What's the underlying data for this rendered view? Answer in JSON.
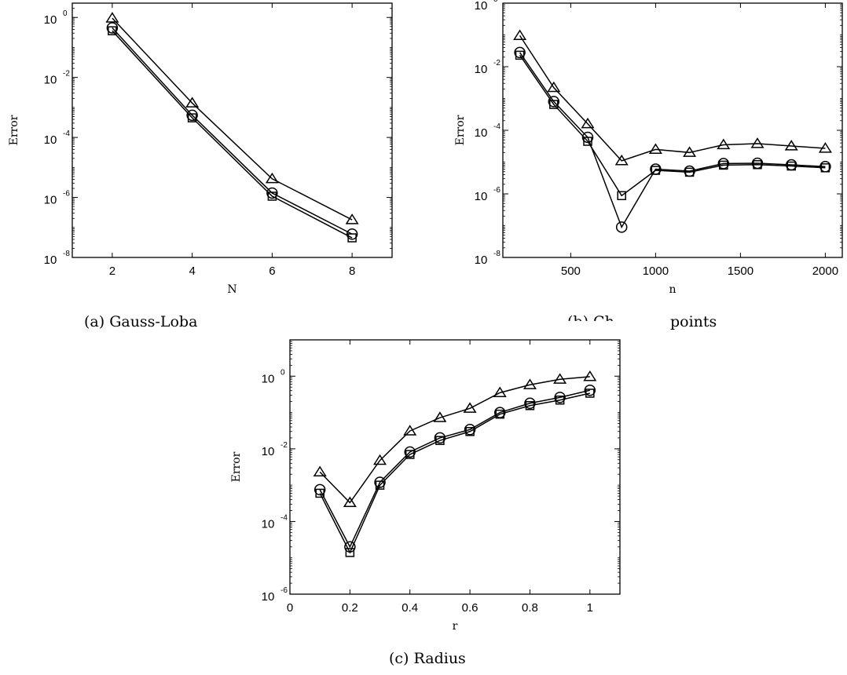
{
  "chart_data": [
    {
      "type": "line",
      "caption": "(a) Gauss-Loba",
      "xlabel": "N",
      "ylabel": "Error",
      "yscale": "log",
      "xlim": [
        1,
        9
      ],
      "ylim": [
        1e-08,
        3
      ],
      "xticks": [
        2,
        4,
        6,
        8
      ],
      "xtick_labels": [
        "2",
        "4",
        "6",
        "8"
      ],
      "yticks": [
        1e-08,
        1e-06,
        0.0001,
        0.01,
        1
      ],
      "ytick_labels": [
        [
          "10",
          "-8"
        ],
        [
          "10",
          "-6"
        ],
        [
          "10",
          "-4"
        ],
        [
          "10",
          "-2"
        ],
        [
          "10",
          "0"
        ]
      ],
      "grid": false,
      "x": [
        2,
        4,
        6,
        8
      ],
      "series": [
        {
          "marker": "triangle",
          "values": [
            0.95,
            0.0014,
            4.2e-06,
            1.8e-07
          ]
        },
        {
          "marker": "circle",
          "values": [
            0.45,
            0.00055,
            1.4e-06,
            6e-08
          ]
        },
        {
          "marker": "square",
          "values": [
            0.36,
            0.00045,
            1.1e-06,
            4.5e-08
          ]
        }
      ]
    },
    {
      "type": "line",
      "caption": "points",
      "xlabel": "n",
      "ylabel": "Error",
      "yscale": "log",
      "xlim": [
        100,
        2100
      ],
      "ylim": [
        1e-08,
        1
      ],
      "xticks": [
        500,
        1000,
        1500,
        2000
      ],
      "xtick_labels": [
        "500",
        "1000",
        "1500",
        "2000"
      ],
      "yticks": [
        1e-08,
        1e-06,
        0.0001,
        0.01,
        1
      ],
      "ytick_labels": [
        [
          "10",
          "-8"
        ],
        [
          "10",
          "-6"
        ],
        [
          "10",
          "-4"
        ],
        [
          "10",
          "-2"
        ],
        [
          "10",
          "0"
        ]
      ],
      "grid": false,
      "x": [
        200,
        400,
        600,
        800,
        1000,
        1200,
        1400,
        1600,
        1800,
        2000
      ],
      "series": [
        {
          "marker": "triangle",
          "values": [
            0.095,
            0.0022,
            0.00016,
            1.1e-05,
            2.5e-05,
            2e-05,
            3.5e-05,
            3.8e-05,
            3.2e-05,
            2.7e-05
          ]
        },
        {
          "marker": "circle",
          "values": [
            0.028,
            0.0008,
            6e-05,
            9e-08,
            6e-06,
            5.2e-06,
            9e-06,
            9.2e-06,
            8.2e-06,
            7.2e-06
          ]
        },
        {
          "marker": "square",
          "values": [
            0.023,
            0.00065,
            4.5e-05,
            8.8e-07,
            5.5e-06,
            4.8e-06,
            8e-06,
            8.3e-06,
            7.5e-06,
            6.6e-06
          ]
        }
      ]
    },
    {
      "type": "line",
      "caption": "(c) Radius",
      "xlabel": "r",
      "ylabel": "Error",
      "yscale": "log",
      "xlim": [
        0,
        1.1
      ],
      "ylim": [
        1e-06,
        10
      ],
      "xticks": [
        0,
        0.2,
        0.4,
        0.6,
        0.8,
        1
      ],
      "xtick_labels": [
        "0",
        "0.2",
        "0.4",
        "0.6",
        "0.8",
        "1"
      ],
      "yticks": [
        1e-06,
        0.0001,
        0.01,
        1
      ],
      "ytick_labels": [
        [
          "10",
          "-6"
        ],
        [
          "10",
          "-4"
        ],
        [
          "10",
          "-2"
        ],
        [
          "10",
          "0"
        ]
      ],
      "grid": false,
      "x": [
        0.1,
        0.2,
        0.3,
        0.4,
        0.5,
        0.6,
        0.7,
        0.8,
        0.9,
        1.0
      ],
      "series": [
        {
          "marker": "triangle",
          "values": [
            0.0023,
            0.00033,
            0.0048,
            0.031,
            0.072,
            0.13,
            0.35,
            0.58,
            0.82,
            0.97
          ]
        },
        {
          "marker": "circle",
          "values": [
            0.00075,
            2e-05,
            0.0012,
            0.0082,
            0.02,
            0.034,
            0.1,
            0.18,
            0.26,
            0.41
          ]
        },
        {
          "marker": "square",
          "values": [
            0.0006,
            1.4e-05,
            0.001,
            0.007,
            0.017,
            0.03,
            0.09,
            0.155,
            0.22,
            0.34
          ]
        }
      ]
    }
  ],
  "captions": {
    "middle_fragment": "(b) Ch"
  }
}
